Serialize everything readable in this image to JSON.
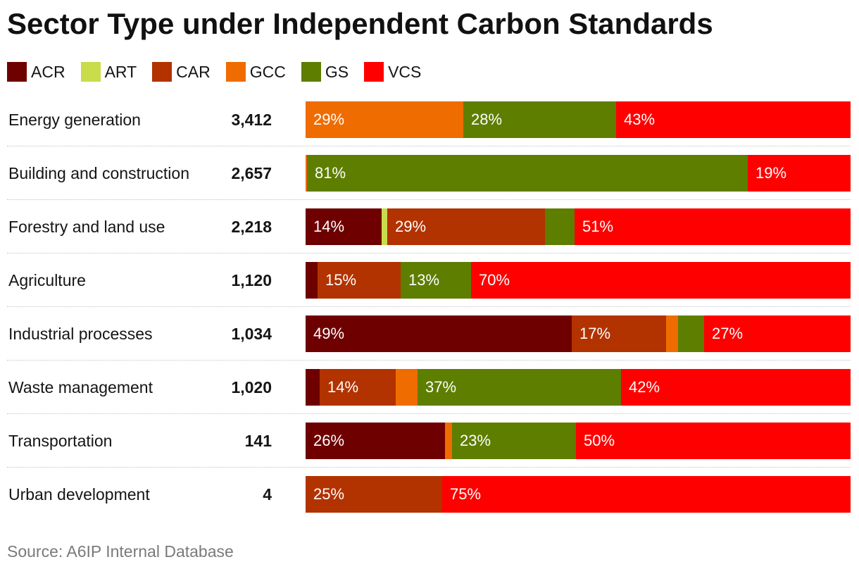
{
  "chart_data": {
    "type": "bar",
    "orientation": "horizontal",
    "stacked": true,
    "normalized": true,
    "title": "Sector Type under Independent Carbon Standards",
    "xlabel": "",
    "ylabel": "",
    "xlim": [
      0,
      100
    ],
    "grid": false,
    "legend_position": "top-left",
    "categories": [
      "Energy generation",
      "Building and construction",
      "Forestry and land use",
      "Agriculture",
      "Industrial processes",
      "Waste management",
      "Transportation",
      "Urban development"
    ],
    "totals": [
      "3,412",
      "2,657",
      "2,218",
      "1,120",
      "1,034",
      "1,020",
      "141",
      "4"
    ],
    "series": [
      {
        "name": "ACR",
        "color": "#6e0000",
        "values": [
          0,
          0,
          14.0,
          2.2,
          48.8,
          2.6,
          25.6,
          0
        ],
        "labels": [
          null,
          null,
          "14%",
          null,
          "49%",
          null,
          "26%",
          null
        ]
      },
      {
        "name": "ART",
        "color": "#c8dc4c",
        "values": [
          0,
          0,
          1.0,
          0,
          0,
          0,
          0,
          0
        ],
        "labels": [
          null,
          null,
          null,
          null,
          null,
          null,
          null,
          null
        ]
      },
      {
        "name": "CAR",
        "color": "#b23200",
        "values": [
          0,
          0,
          28.9,
          15.2,
          17.3,
          14.0,
          0,
          25.0
        ],
        "labels": [
          null,
          null,
          "29%",
          "15%",
          "17%",
          "14%",
          null,
          "25%"
        ]
      },
      {
        "name": "GCC",
        "color": "#ef6c00",
        "values": [
          29.0,
          0.3,
          0,
          0,
          2.3,
          3.9,
          1.3,
          0
        ],
        "labels": [
          "29%",
          null,
          null,
          null,
          null,
          null,
          null,
          null
        ]
      },
      {
        "name": "GS",
        "color": "#5e7e00",
        "values": [
          28.0,
          80.8,
          5.4,
          12.9,
          4.7,
          37.4,
          22.7,
          0
        ],
        "labels": [
          "28%",
          "81%",
          null,
          "13%",
          null,
          "37%",
          "23%",
          null
        ]
      },
      {
        "name": "VCS",
        "color": "#fe0000",
        "values": [
          43.0,
          18.9,
          50.7,
          69.7,
          26.9,
          42.1,
          50.4,
          75.0
        ],
        "labels": [
          "43%",
          "19%",
          "51%",
          "70%",
          "27%",
          "42%",
          "50%",
          "75%"
        ]
      }
    ],
    "source": "Source: A6IP Internal Database"
  }
}
